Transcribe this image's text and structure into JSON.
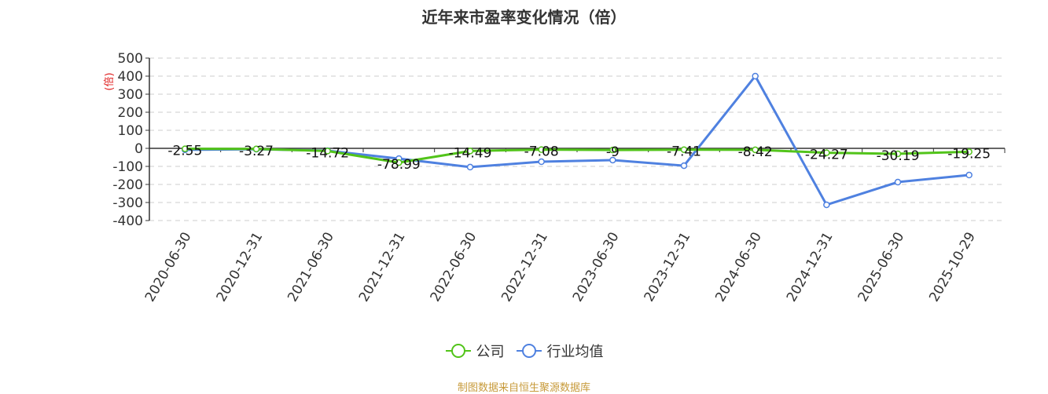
{
  "title": "近年来市盈率变化情况（倍）",
  "source_note": "制图数据来自恒生聚源数据库",
  "legend": [
    {
      "label": "公司",
      "color": "#52c41a"
    },
    {
      "label": "行业均值",
      "color": "#4f81e0"
    }
  ],
  "chart_data": {
    "type": "line",
    "title": "近年来市盈率变化情况（倍）",
    "xlabel": "",
    "ylabel": "(倍)",
    "ylim": [
      -400,
      500
    ],
    "yticks": [
      500,
      400,
      300,
      200,
      100,
      0,
      -100,
      -200,
      -300,
      -400
    ],
    "grid": true,
    "legend_position": "bottom",
    "categories": [
      "2020-06-30",
      "2020-12-31",
      "2021-06-30",
      "2021-12-31",
      "2022-06-30",
      "2022-12-31",
      "2023-06-30",
      "2023-12-31",
      "2024-06-30",
      "2024-12-31",
      "2025-06-30",
      "2025-10-29"
    ],
    "series": [
      {
        "name": "公司",
        "color": "#52c41a",
        "values": [
          -2.55,
          -3.27,
          -14.72,
          -78.99,
          -14.49,
          -7.08,
          -9,
          -7.41,
          -8.42,
          -24.27,
          -30.19,
          -19.25
        ],
        "labels_shown": true
      },
      {
        "name": "行业均值",
        "color": "#4f81e0",
        "values": [
          -8,
          -5,
          -13,
          -57,
          -104,
          -74,
          -65,
          -96,
          400,
          -313,
          -187,
          -148
        ],
        "labels_shown": false
      }
    ]
  }
}
